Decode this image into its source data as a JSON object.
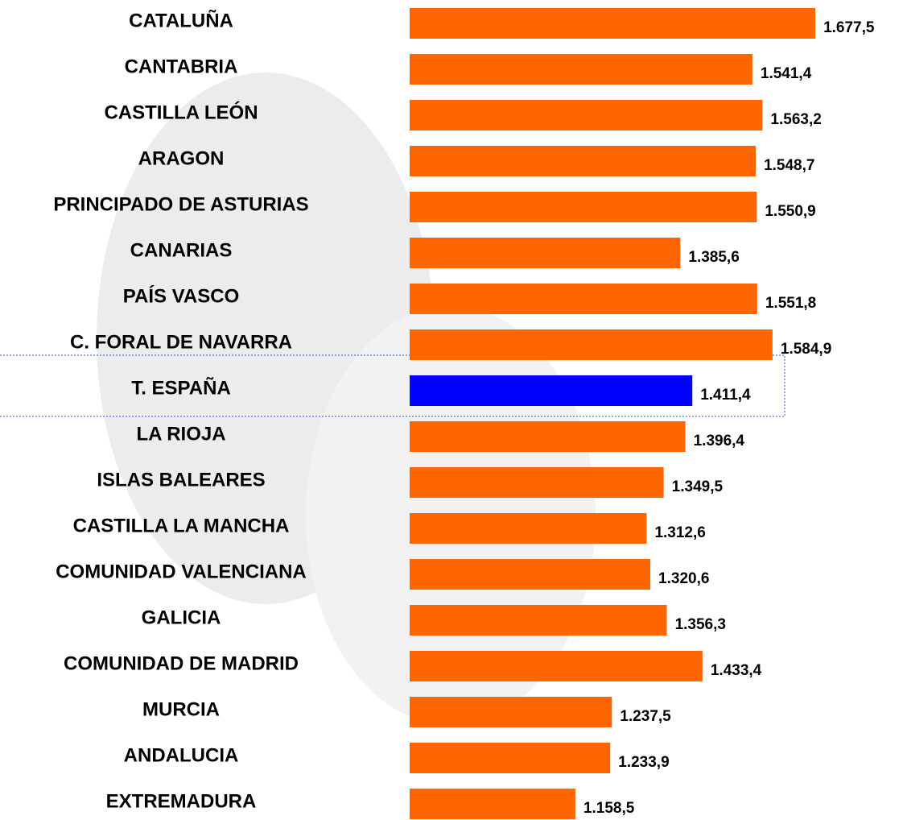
{
  "chart_data": {
    "type": "hbar",
    "categories": [
      "CATALUÑA",
      "CANTABRIA",
      "CASTILLA LEÓN",
      "ARAGON",
      "PRINCIPADO DE ASTURIAS",
      "CANARIAS",
      "PAÍS VASCO",
      "C. FORAL DE NAVARRA",
      "T. ESPAÑA",
      "LA RIOJA",
      "ISLAS BALEARES",
      "CASTILLA LA MANCHA",
      "COMUNIDAD VALENCIANA",
      "GALICIA",
      "COMUNIDAD DE MADRID",
      "MURCIA",
      "ANDALUCIA",
      "EXTREMADURA"
    ],
    "values": [
      1677.5,
      1541.4,
      1563.2,
      1548.7,
      1550.9,
      1385.6,
      1551.8,
      1584.9,
      1411.4,
      1396.4,
      1349.5,
      1312.6,
      1320.6,
      1356.3,
      1433.4,
      1237.5,
      1233.9,
      1158.5
    ],
    "value_labels": [
      "1.677,5",
      "1.541,4",
      "1.563,2",
      "1.548,7",
      "1.550,9",
      "1.385,6",
      "1.551,8",
      "1.584,9",
      "1.411,4",
      "1.396,4",
      "1.349,5",
      "1.312,6",
      "1.320,6",
      "1.356,3",
      "1.433,4",
      "1.237,5",
      "1.233,9",
      "1.158,5"
    ],
    "colors": [
      "#ff6600",
      "#ff6600",
      "#ff6600",
      "#ff6600",
      "#ff6600",
      "#ff6600",
      "#ff6600",
      "#ff6600",
      "#0000ff",
      "#ff6600",
      "#ff6600",
      "#ff6600",
      "#ff6600",
      "#ff6600",
      "#ff6600",
      "#ff6600",
      "#ff6600",
      "#ff6600"
    ],
    "xlim": [
      800,
      1700
    ]
  }
}
